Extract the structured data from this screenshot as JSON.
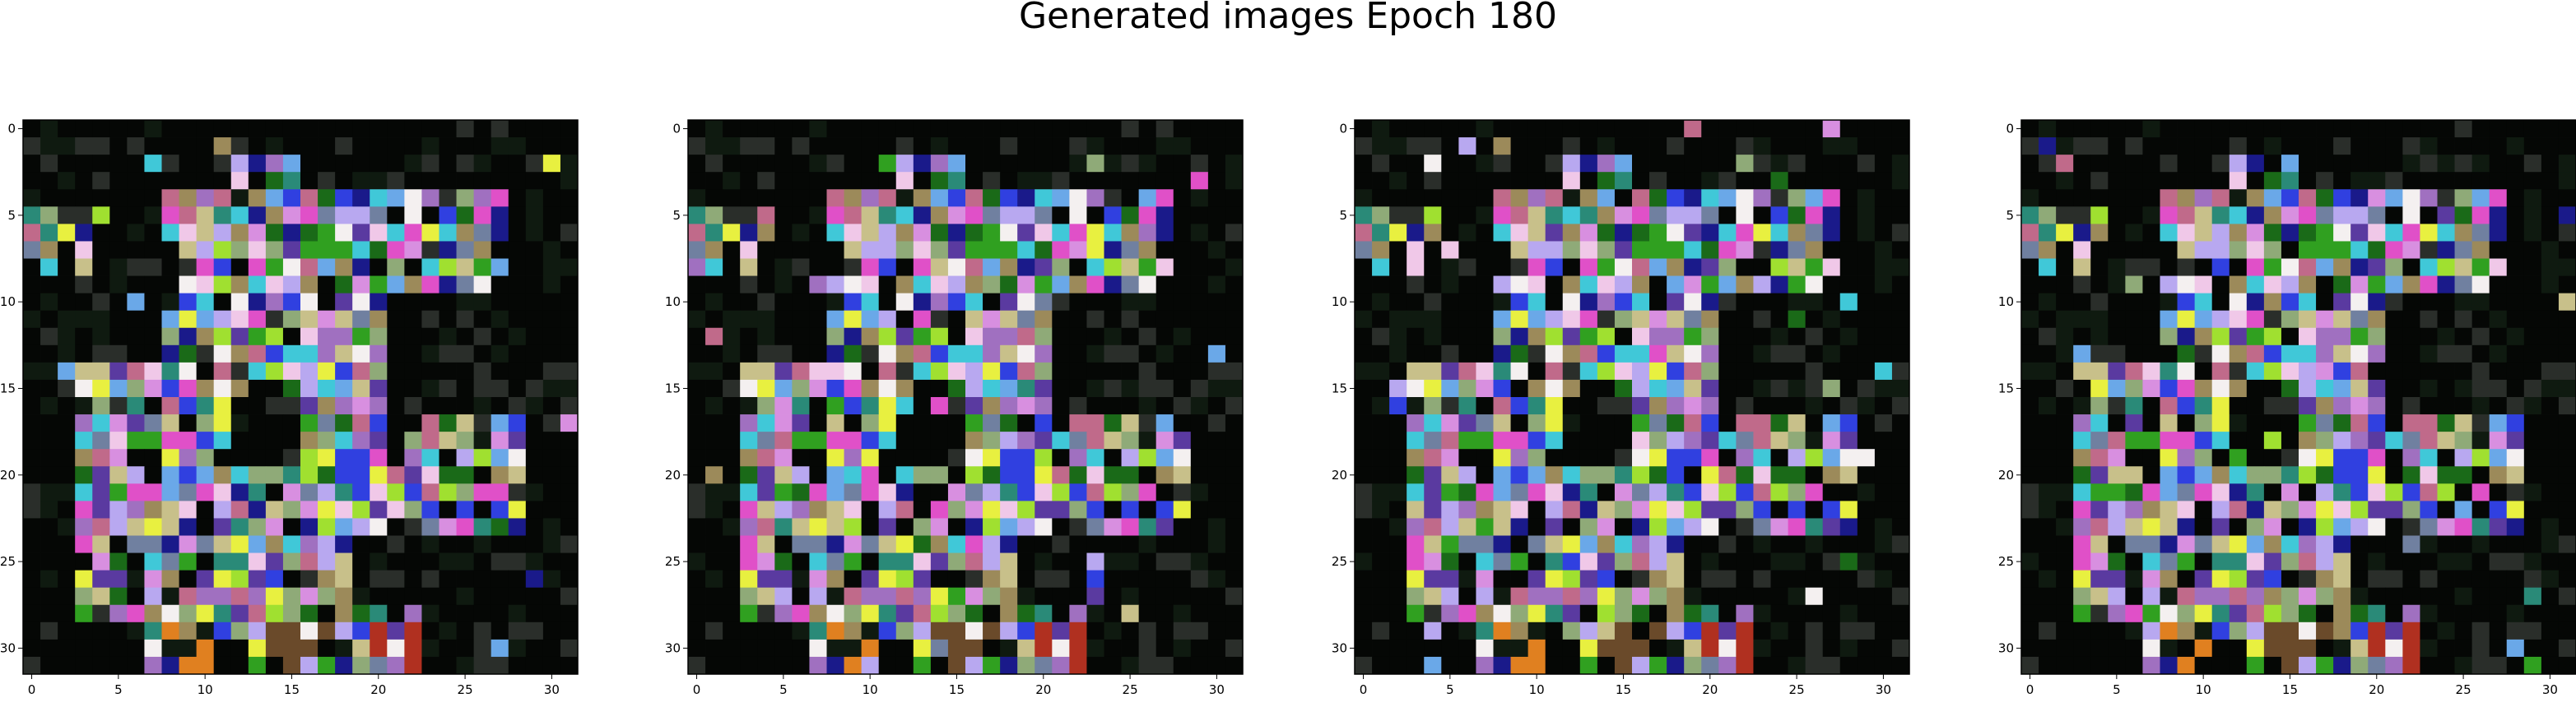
{
  "figure": {
    "title": "Generated images Epoch 180"
  },
  "panels": [
    {
      "name": "generated-image-1",
      "variant": 0
    },
    {
      "name": "generated-image-2",
      "variant": 1
    },
    {
      "name": "generated-image-3",
      "variant": 2
    },
    {
      "name": "generated-image-4",
      "variant": 3
    }
  ],
  "image": {
    "size": 32,
    "x_ticks": [
      "0",
      "5",
      "10",
      "15",
      "20",
      "25",
      "30"
    ],
    "y_ticks": [
      "0",
      "5",
      "10",
      "15",
      "20",
      "25",
      "30"
    ],
    "palette": {
      "background": "#050705",
      "dark_green": "#0f1a10",
      "dim_grey": "#2a2e2a",
      "olive_dim": "#3a4a2a",
      "khaki": "#c8c08a",
      "tan": "#9c8a5a",
      "sage": "#8faa78",
      "pink": "#d88fe0",
      "lavender": "#b8a8f0",
      "light_pink": "#f0c8e8",
      "white": "#f4f0f0",
      "yellow": "#e8f040",
      "lime": "#a0e030",
      "green": "#30a020",
      "forest": "#1a6a18",
      "cyan": "#40c8d8",
      "teal": "#2a8a78",
      "blue": "#3040e0",
      "navy": "#1a1a8a",
      "sky": "#6aa8e8",
      "steel": "#7080a0",
      "mauve": "#a070c0",
      "purple": "#5a3aa0",
      "orange": "#e08020",
      "brown": "#6a4a2a",
      "red": "#b03020",
      "rose": "#c06a8a",
      "magenta": "#e050c8"
    }
  }
}
